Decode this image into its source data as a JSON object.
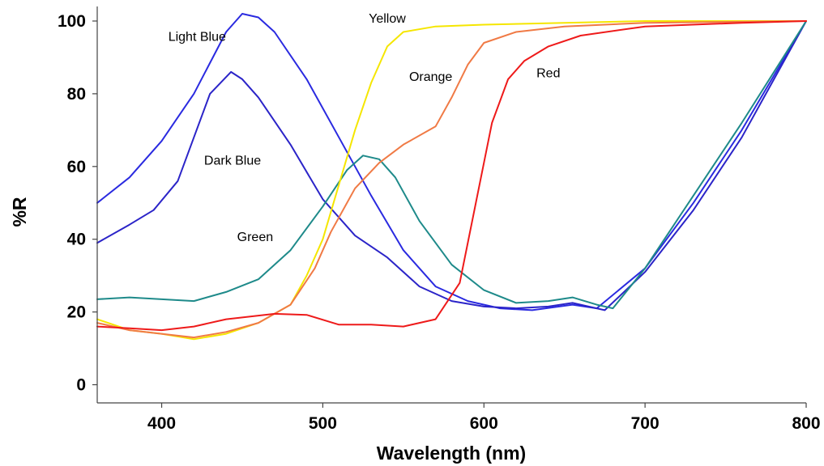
{
  "chart_data": {
    "type": "line",
    "title": "",
    "xlabel": "Wavelength (nm)",
    "ylabel": "%R",
    "xlim": [
      360,
      800
    ],
    "ylim": [
      -5,
      104
    ],
    "xticks": [
      400,
      500,
      600,
      700,
      800
    ],
    "yticks": [
      0,
      20,
      40,
      60,
      80,
      100
    ],
    "xtick_labels": [
      "400",
      "500",
      "600",
      "700",
      "800"
    ],
    "ytick_labels": [
      "0",
      "20",
      "40",
      "60",
      "80",
      "100"
    ],
    "grid": false,
    "legend": "none",
    "series": [
      {
        "name": "Light Blue",
        "color": "#2a2ae0",
        "points": [
          [
            360,
            50
          ],
          [
            380,
            57
          ],
          [
            400,
            67
          ],
          [
            420,
            80
          ],
          [
            440,
            97
          ],
          [
            450,
            102
          ],
          [
            460,
            101
          ],
          [
            470,
            97
          ],
          [
            490,
            84
          ],
          [
            510,
            68
          ],
          [
            530,
            52
          ],
          [
            550,
            37
          ],
          [
            570,
            27
          ],
          [
            590,
            23
          ],
          [
            610,
            21
          ],
          [
            630,
            20.5
          ],
          [
            655,
            22
          ],
          [
            670,
            21
          ],
          [
            700,
            32
          ],
          [
            730,
            50
          ],
          [
            760,
            70
          ],
          [
            800,
            100
          ]
        ]
      },
      {
        "name": "Dark Blue",
        "color": "#2b24c8",
        "points": [
          [
            360,
            39
          ],
          [
            380,
            44
          ],
          [
            395,
            48
          ],
          [
            410,
            56
          ],
          [
            420,
            68
          ],
          [
            430,
            80
          ],
          [
            443,
            86
          ],
          [
            450,
            84
          ],
          [
            460,
            79
          ],
          [
            480,
            66
          ],
          [
            500,
            51
          ],
          [
            520,
            41
          ],
          [
            540,
            35
          ],
          [
            560,
            27
          ],
          [
            580,
            23
          ],
          [
            600,
            21.5
          ],
          [
            620,
            21
          ],
          [
            640,
            21.5
          ],
          [
            655,
            22.5
          ],
          [
            675,
            20.5
          ],
          [
            700,
            31
          ],
          [
            730,
            48
          ],
          [
            760,
            68
          ],
          [
            800,
            100
          ]
        ]
      },
      {
        "name": "Green",
        "color": "#1e8a8a",
        "points": [
          [
            360,
            23.5
          ],
          [
            380,
            24
          ],
          [
            400,
            23.5
          ],
          [
            420,
            23
          ],
          [
            440,
            25.5
          ],
          [
            460,
            29
          ],
          [
            480,
            37
          ],
          [
            500,
            49
          ],
          [
            515,
            59
          ],
          [
            525,
            63
          ],
          [
            535,
            62
          ],
          [
            545,
            57
          ],
          [
            560,
            45
          ],
          [
            580,
            33
          ],
          [
            600,
            26
          ],
          [
            620,
            22.5
          ],
          [
            640,
            23
          ],
          [
            655,
            24
          ],
          [
            670,
            22
          ],
          [
            680,
            21
          ],
          [
            700,
            32
          ],
          [
            730,
            52
          ],
          [
            760,
            72
          ],
          [
            800,
            100
          ]
        ]
      },
      {
        "name": "Yellow",
        "color": "#f5e600",
        "points": [
          [
            360,
            18
          ],
          [
            380,
            15
          ],
          [
            400,
            14
          ],
          [
            420,
            12.5
          ],
          [
            440,
            14
          ],
          [
            460,
            17
          ],
          [
            480,
            22
          ],
          [
            490,
            30
          ],
          [
            500,
            40
          ],
          [
            510,
            55
          ],
          [
            520,
            70
          ],
          [
            530,
            83
          ],
          [
            540,
            93
          ],
          [
            550,
            97
          ],
          [
            570,
            98.5
          ],
          [
            600,
            99
          ],
          [
            650,
            99.5
          ],
          [
            700,
            100
          ],
          [
            800,
            100
          ]
        ]
      },
      {
        "name": "Orange",
        "color": "#f07a45",
        "points": [
          [
            360,
            17
          ],
          [
            380,
            15
          ],
          [
            400,
            14
          ],
          [
            420,
            13
          ],
          [
            440,
            14.5
          ],
          [
            460,
            17
          ],
          [
            480,
            22
          ],
          [
            495,
            32
          ],
          [
            505,
            42
          ],
          [
            520,
            54
          ],
          [
            535,
            61
          ],
          [
            550,
            66
          ],
          [
            570,
            71
          ],
          [
            580,
            79
          ],
          [
            590,
            88
          ],
          [
            600,
            94
          ],
          [
            620,
            97
          ],
          [
            650,
            98.5
          ],
          [
            700,
            99.5
          ],
          [
            800,
            100
          ]
        ]
      },
      {
        "name": "Red",
        "color": "#ee1a1a",
        "points": [
          [
            360,
            16
          ],
          [
            380,
            15.5
          ],
          [
            400,
            15
          ],
          [
            420,
            16
          ],
          [
            440,
            18
          ],
          [
            470,
            19.5
          ],
          [
            490,
            19.2
          ],
          [
            510,
            16.5
          ],
          [
            530,
            16.5
          ],
          [
            550,
            16
          ],
          [
            570,
            18
          ],
          [
            585,
            28
          ],
          [
            595,
            50
          ],
          [
            605,
            72
          ],
          [
            615,
            84
          ],
          [
            625,
            89
          ],
          [
            640,
            93
          ],
          [
            660,
            96
          ],
          [
            700,
            98.5
          ],
          [
            760,
            99.5
          ],
          [
            800,
            100
          ]
        ]
      }
    ],
    "annotations": [
      {
        "text": "Light Blue",
        "series": "Light Blue",
        "anchor": [
          422,
          94.5
        ]
      },
      {
        "text": "Dark Blue",
        "series": "Dark Blue",
        "anchor": [
          444,
          60.5
        ]
      },
      {
        "text": "Green",
        "series": "Green",
        "anchor": [
          458,
          39.5
        ]
      },
      {
        "text": "Yellow",
        "series": "Yellow",
        "anchor": [
          540,
          99.5
        ]
      },
      {
        "text": "Orange",
        "series": "Orange",
        "anchor": [
          567,
          83.5
        ]
      },
      {
        "text": "Red",
        "series": "Red",
        "anchor": [
          640,
          84.5
        ]
      }
    ]
  }
}
